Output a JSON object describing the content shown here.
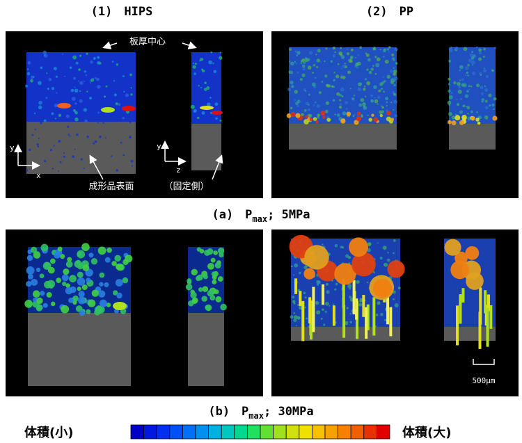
{
  "headers": [
    "(1)　HIPS",
    "(2)　PP"
  ],
  "annotations": {
    "center": "板厚中心",
    "surface": "成形品表面",
    "fixed_side": "（固定側）",
    "axis_y1": "y",
    "axis_x": "x",
    "axis_y2": "y",
    "axis_z": "z",
    "scale": "500μm"
  },
  "captions": [
    {
      "label": "(a)　P",
      "subscript": "max",
      "condition": "; 5MPa"
    },
    {
      "label": "(b)　P",
      "subscript": "max",
      "condition": "; 30MPa"
    }
  ],
  "colorbar": {
    "low": "体積(小)",
    "high": "体積(大)"
  }
}
